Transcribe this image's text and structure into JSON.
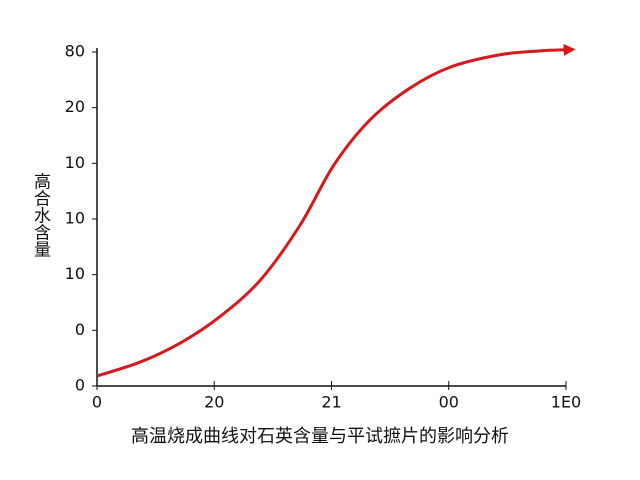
{
  "chart_data": {
    "type": "line",
    "x_label": "高温烧成曲线对石英含量与平试摭片的影响分析",
    "y_label": "高合水含量",
    "x": [
      0,
      9.2,
      17.7,
      25.8,
      34.8,
      43.3,
      50.5,
      58.2,
      66.7,
      75.4,
      85.9,
      94.5,
      100
    ],
    "series": [
      {
        "color": "#d7191c",
        "values": [
          1.8,
          4.3,
          7.7,
          12.2,
          19.0,
          28.9,
          39.7,
          47.8,
          53.5,
          57.3,
          59.5,
          60.2,
          60.4
        ]
      }
    ],
    "xlim": [
      0,
      100
    ],
    "xticks": [
      0,
      {
        "value": 25,
        "label": "20"
      },
      {
        "value": 50,
        "label": "21"
      },
      {
        "value": 75,
        "label": "00"
      },
      {
        "value": 100,
        "label": "1E0"
      }
    ],
    "ylim": [
      0,
      60
    ],
    "yticks": [
      0,
      {
        "value": 10,
        "label": "0"
      },
      {
        "value": 20,
        "label": "10"
      },
      {
        "value": 30,
        "label": "10"
      },
      {
        "value": 40,
        "label": "10"
      },
      {
        "value": 50,
        "label": "20"
      },
      {
        "value": 60,
        "label": "80"
      }
    ]
  }
}
